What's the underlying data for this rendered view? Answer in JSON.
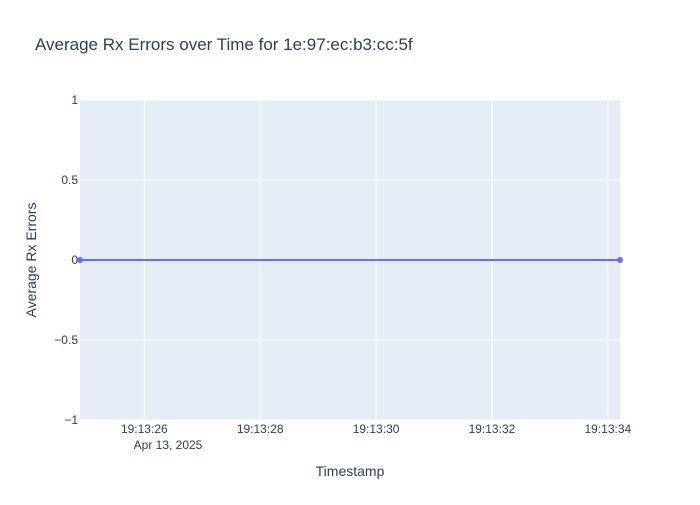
{
  "chart_data": {
    "type": "line",
    "title": "Average Rx Errors over Time for 1e:97:ec:b3:cc:5f",
    "xlabel": "Timestamp",
    "ylabel": "Average Rx Errors",
    "x_tick_labels": [
      "19:13:26",
      "19:13:28",
      "19:13:30",
      "19:13:32",
      "19:13:34"
    ],
    "x_tick_values": [
      26,
      28,
      30,
      32,
      34
    ],
    "x_date_label": "Apr 13, 2025",
    "y_tick_labels": [
      "1",
      "0.5",
      "0",
      "−0.5",
      "−1"
    ],
    "y_tick_values": [
      1,
      0.5,
      0,
      -0.5,
      -1
    ],
    "xlim": [
      "2025-04-13 19:13:24.89",
      "2025-04-13 19:13:34.21"
    ],
    "ylim": [
      -1,
      1
    ],
    "grid": true,
    "series": [
      {
        "x": [
          "2025-04-13 19:13:24.89",
          "2025-04-13 19:13:34.21"
        ],
        "y": [
          0,
          0
        ],
        "color": "#636efa"
      }
    ],
    "colors": {
      "plot_background": "#e5ecf6",
      "grid": "#ffffff",
      "text": "#2a3f5f",
      "line": "#636efa"
    }
  }
}
